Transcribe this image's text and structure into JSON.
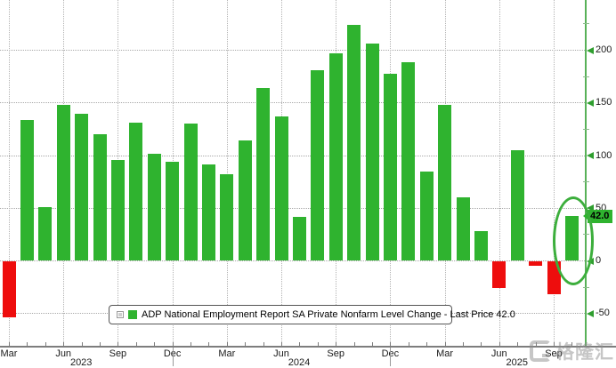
{
  "chart_data": {
    "type": "bar",
    "title": "",
    "series_name": "ADP National Employment Report SA Private Nonfarm Level Change",
    "last_price": 42.0,
    "last_price_label": "42.0",
    "x": [
      "2023-03",
      "2023-04",
      "2023-05",
      "2023-06",
      "2023-07",
      "2023-08",
      "2023-09",
      "2023-10",
      "2023-11",
      "2023-12",
      "2024-01",
      "2024-02",
      "2024-03",
      "2024-04",
      "2024-05",
      "2024-06",
      "2024-07",
      "2024-08",
      "2024-09",
      "2024-10",
      "2024-11",
      "2024-12",
      "2025-01",
      "2025-02",
      "2025-03",
      "2025-04",
      "2025-05",
      "2025-06",
      "2025-07",
      "2025-08",
      "2025-09",
      "2025-10"
    ],
    "values": [
      -53,
      133,
      51,
      148,
      139,
      120,
      95,
      131,
      101,
      94,
      130,
      91,
      82,
      114,
      164,
      137,
      41,
      181,
      197,
      224,
      206,
      177,
      188,
      84,
      148,
      60,
      28,
      -25,
      105,
      -4,
      -31,
      42
    ],
    "positive_color": "#2fb32f",
    "negative_color": "#ee0d0d",
    "ylim": [
      -75,
      235
    ],
    "y_ticks": [
      200,
      150,
      100,
      50,
      0,
      -50
    ],
    "y_minor_ticks": [
      225,
      175,
      125,
      75,
      25,
      -25
    ],
    "x_tick_labels": [
      "Mar",
      "Jun",
      "Sep",
      "Dec",
      "Mar",
      "Jun",
      "Sep",
      "Dec",
      "Mar",
      "Jun",
      "Sep"
    ],
    "x_tick_indices": [
      0,
      3,
      6,
      9,
      12,
      15,
      18,
      21,
      24,
      27,
      30
    ],
    "year_labels": [
      "2023",
      "2024",
      "2025"
    ],
    "grid": "dotted",
    "legend_position": "bottom-center",
    "annotation": {
      "type": "ellipse-highlight",
      "target": "last-bar",
      "axis_label": "42.0"
    }
  },
  "legend": {
    "label": "ADP National Employment Report SA Private Nonfarm Level Change - Last Price 42.0"
  },
  "watermark": {
    "text": "格隆汇"
  }
}
